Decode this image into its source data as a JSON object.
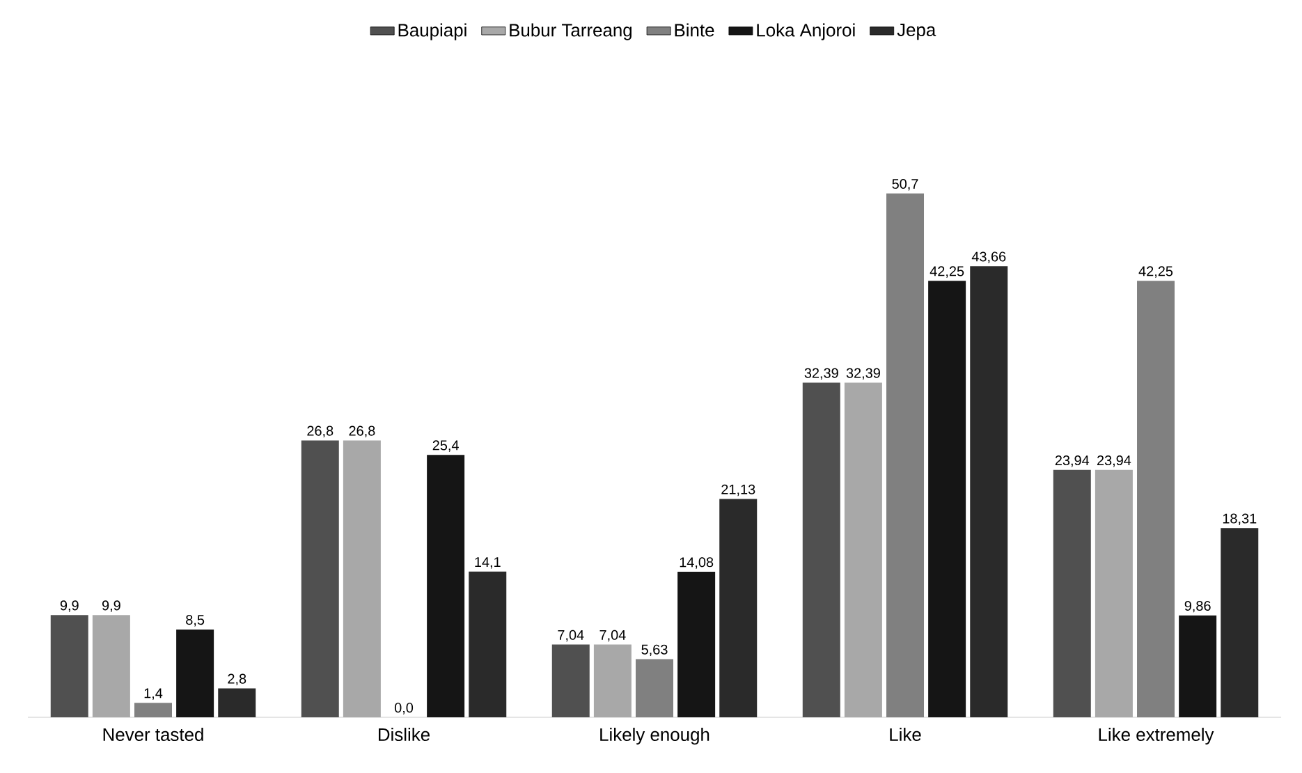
{
  "chart_data": {
    "type": "bar",
    "categories": [
      "Never tasted",
      "Dislike",
      "Likely enough",
      "Like",
      "Like extremely"
    ],
    "legend": "top",
    "data_labels": true,
    "series": [
      {
        "name": "Baupiapi",
        "color": "#505050",
        "values": [
          9.9,
          26.8,
          7.04,
          32.39,
          23.94
        ],
        "value_labels": [
          "9,9",
          "26,8",
          "7,04",
          "32,39",
          "23,94"
        ]
      },
      {
        "name": "Bubur Tarreang",
        "color": "#a8a8a8",
        "values": [
          9.9,
          26.8,
          7.04,
          32.39,
          23.94
        ],
        "value_labels": [
          "9,9",
          "26,8",
          "7,04",
          "32,39",
          "23,94"
        ]
      },
      {
        "name": "Binte",
        "color": "#808080",
        "values": [
          1.4,
          0.0,
          5.63,
          50.7,
          42.25
        ],
        "value_labels": [
          "1,4",
          "0,0",
          "5,63",
          "50,7",
          "42,25"
        ]
      },
      {
        "name": "Loka Anjoroi",
        "color": "#151515",
        "values": [
          8.5,
          25.4,
          14.08,
          42.25,
          9.86
        ],
        "value_labels": [
          "8,5",
          "25,4",
          "14,08",
          "42,25",
          "9,86"
        ]
      },
      {
        "name": "Jepa",
        "color": "#2a2a2a",
        "values": [
          2.8,
          14.1,
          21.13,
          43.66,
          18.31
        ],
        "value_labels": [
          "2,8",
          "14,1",
          "21,13",
          "43,66",
          "18,31"
        ]
      }
    ]
  }
}
